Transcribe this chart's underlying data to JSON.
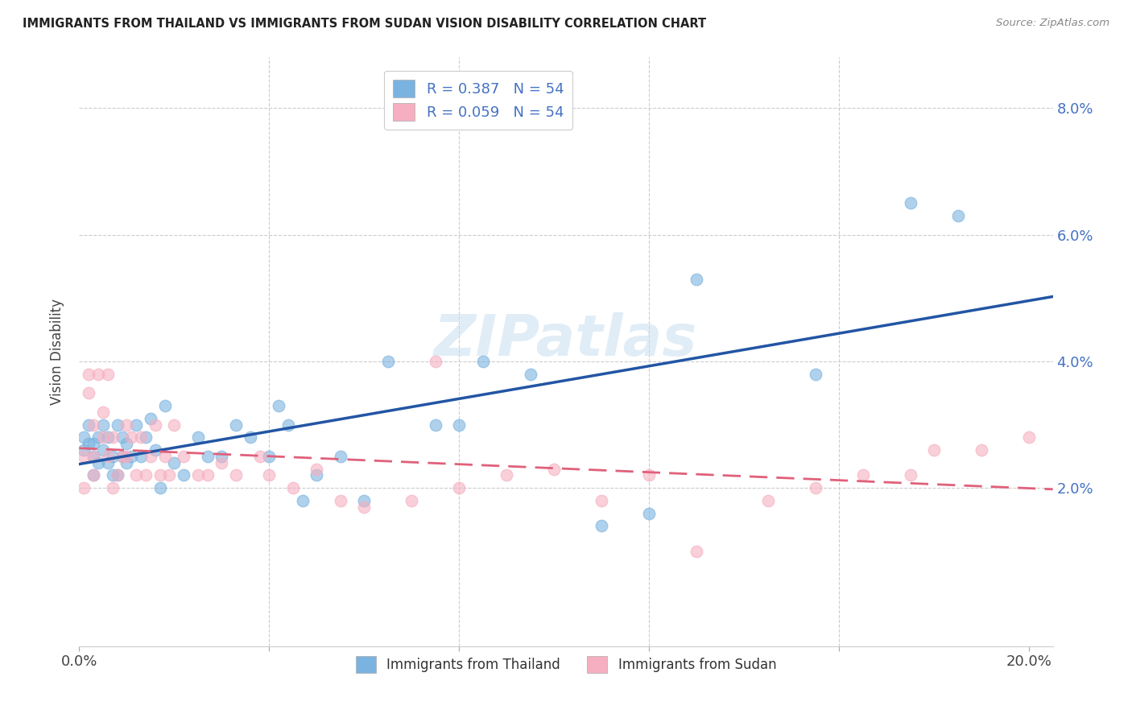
{
  "title": "IMMIGRANTS FROM THAILAND VS IMMIGRANTS FROM SUDAN VISION DISABILITY CORRELATION CHART",
  "source": "Source: ZipAtlas.com",
  "ylabel": "Vision Disability",
  "xlim": [
    0.0,
    0.205
  ],
  "ylim": [
    -0.005,
    0.088
  ],
  "blue_color": "#7ab3e0",
  "pink_color": "#f5afc0",
  "line_blue": "#2255a4",
  "line_pink": "#e0607a",
  "legend1_label": "R = 0.387   N = 54",
  "legend2_label": "R = 0.059   N = 54",
  "legend_bottom_label1": "Immigrants from Thailand",
  "legend_bottom_label2": "Immigrants from Sudan",
  "watermark": "ZIPatlas",
  "thailand_x": [
    0.001,
    0.001,
    0.002,
    0.002,
    0.003,
    0.003,
    0.003,
    0.004,
    0.004,
    0.005,
    0.005,
    0.006,
    0.006,
    0.007,
    0.007,
    0.008,
    0.008,
    0.009,
    0.009,
    0.01,
    0.01,
    0.011,
    0.012,
    0.013,
    0.014,
    0.015,
    0.016,
    0.017,
    0.018,
    0.02,
    0.022,
    0.025,
    0.027,
    0.03,
    0.033,
    0.036,
    0.04,
    0.042,
    0.044,
    0.047,
    0.05,
    0.055,
    0.06,
    0.065,
    0.075,
    0.08,
    0.085,
    0.095,
    0.11,
    0.12,
    0.13,
    0.155,
    0.175,
    0.185
  ],
  "thailand_y": [
    0.028,
    0.026,
    0.027,
    0.03,
    0.025,
    0.027,
    0.022,
    0.024,
    0.028,
    0.026,
    0.03,
    0.024,
    0.028,
    0.022,
    0.025,
    0.03,
    0.022,
    0.028,
    0.025,
    0.024,
    0.027,
    0.025,
    0.03,
    0.025,
    0.028,
    0.031,
    0.026,
    0.02,
    0.033,
    0.024,
    0.022,
    0.028,
    0.025,
    0.025,
    0.03,
    0.028,
    0.025,
    0.033,
    0.03,
    0.018,
    0.022,
    0.025,
    0.018,
    0.04,
    0.03,
    0.03,
    0.04,
    0.038,
    0.014,
    0.016,
    0.053,
    0.038,
    0.065,
    0.063
  ],
  "sudan_x": [
    0.001,
    0.001,
    0.002,
    0.002,
    0.003,
    0.003,
    0.003,
    0.004,
    0.005,
    0.005,
    0.006,
    0.006,
    0.007,
    0.007,
    0.008,
    0.009,
    0.01,
    0.01,
    0.011,
    0.012,
    0.013,
    0.014,
    0.015,
    0.016,
    0.017,
    0.018,
    0.019,
    0.02,
    0.022,
    0.025,
    0.027,
    0.03,
    0.033,
    0.038,
    0.04,
    0.045,
    0.05,
    0.055,
    0.06,
    0.07,
    0.075,
    0.08,
    0.09,
    0.1,
    0.11,
    0.12,
    0.13,
    0.145,
    0.155,
    0.165,
    0.175,
    0.18,
    0.19,
    0.2
  ],
  "sudan_y": [
    0.025,
    0.02,
    0.035,
    0.038,
    0.03,
    0.022,
    0.025,
    0.038,
    0.028,
    0.032,
    0.025,
    0.038,
    0.02,
    0.028,
    0.022,
    0.025,
    0.03,
    0.025,
    0.028,
    0.022,
    0.028,
    0.022,
    0.025,
    0.03,
    0.022,
    0.025,
    0.022,
    0.03,
    0.025,
    0.022,
    0.022,
    0.024,
    0.022,
    0.025,
    0.022,
    0.02,
    0.023,
    0.018,
    0.017,
    0.018,
    0.04,
    0.02,
    0.022,
    0.023,
    0.018,
    0.022,
    0.01,
    0.018,
    0.02,
    0.022,
    0.022,
    0.026,
    0.026,
    0.028
  ]
}
